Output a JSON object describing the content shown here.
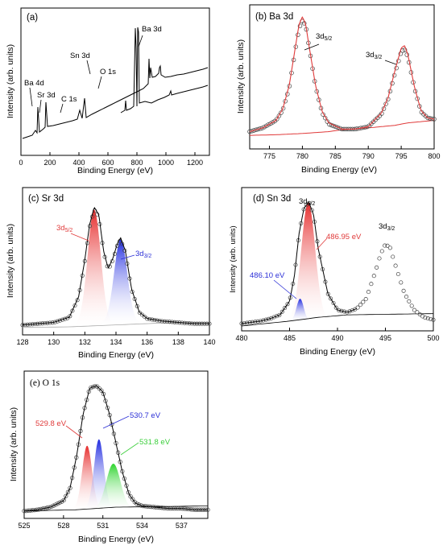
{
  "chart_data": [
    {
      "id": "a",
      "type": "line",
      "title": "(a)",
      "xlabel": "Binding Energy (eV)",
      "ylabel": "Intensity (arb. units)",
      "xlim": [
        0,
        1300
      ],
      "xticks": [
        0,
        200,
        400,
        600,
        800,
        1000,
        1200
      ],
      "series": [
        {
          "x": [
            0,
            20,
            40,
            60,
            80,
            90,
            93,
            96,
            110,
            130,
            135,
            140,
            160,
            180,
            200,
            220,
            240,
            260,
            270,
            285,
            290,
            300,
            320,
            340,
            360,
            380,
            400,
            420,
            440,
            460,
            480,
            488,
            492,
            500,
            520,
            530,
            533,
            536,
            550,
            570,
            590,
            600,
            620,
            640,
            660,
            680,
            700,
            720,
            730,
            735,
            740,
            760,
            775,
            780,
            783,
            789,
            795,
            800,
            820,
            840,
            860,
            880,
            900,
            950,
            1000,
            1050,
            1060,
            1070,
            1100,
            1150,
            1200,
            1250,
            1290
          ],
          "y": [
            0.03,
            0.04,
            0.05,
            0.07,
            0.08,
            0.09,
            0.28,
            0.1,
            0.11,
            0.12,
            0.33,
            0.13,
            0.13,
            0.14,
            0.14,
            0.15,
            0.15,
            0.16,
            0.22,
            0.16,
            0.3,
            0.17,
            0.18,
            0.19,
            0.2,
            0.21,
            0.22,
            0.23,
            0.24,
            0.25,
            0.3,
            0.62,
            0.55,
            0.34,
            0.36,
            0.42,
            0.47,
            0.4,
            0.38,
            0.4,
            0.42,
            0.43,
            0.44,
            0.45,
            0.46,
            0.47,
            0.48,
            0.49,
            0.62,
            0.55,
            0.52,
            0.55,
            0.62,
            1.0,
            0.62,
            0.98,
            0.7,
            0.66,
            0.6,
            0.58,
            0.6,
            0.63,
            0.64,
            0.65,
            0.66,
            0.68,
            0.76,
            0.7,
            0.71,
            0.73,
            0.75,
            0.76,
            0.77
          ]
        }
      ],
      "annotations": [
        {
          "text": "Ba 3d",
          "x": 780,
          "y": 1.0
        },
        {
          "text": "Sn 3d",
          "x": 488,
          "y": 0.62
        },
        {
          "text": "O 1s",
          "x": 531,
          "y": 0.47
        },
        {
          "text": "C 1s",
          "x": 285,
          "y": 0.3
        },
        {
          "text": "Sr 3d",
          "x": 134,
          "y": 0.33
        },
        {
          "text": "Ba 4d",
          "x": 92,
          "y": 0.28
        }
      ]
    },
    {
      "id": "b",
      "type": "scatter",
      "title": "(b) Ba 3d",
      "xlabel": "Binding Energy (eV)",
      "ylabel": "Intensity (arb. units)",
      "xlim": [
        772,
        800
      ],
      "xticks": [
        775,
        780,
        785,
        790,
        795,
        800
      ],
      "peaks": [
        {
          "label": "3d5/2",
          "center": 780.2
        },
        {
          "label": "3d3/2",
          "center": 795.6
        }
      ],
      "series": [
        {
          "name": "data",
          "marker": "open-circle",
          "x": [
            772,
            774,
            776,
            777,
            778,
            779,
            779.5,
            780,
            780.5,
            781,
            782,
            783,
            784,
            786,
            788,
            790,
            792,
            793,
            794,
            795,
            795.5,
            796,
            797,
            798,
            799,
            800
          ],
          "y": [
            0.1,
            0.13,
            0.19,
            0.27,
            0.45,
            0.78,
            0.93,
            0.99,
            0.95,
            0.78,
            0.46,
            0.25,
            0.16,
            0.12,
            0.12,
            0.14,
            0.24,
            0.36,
            0.56,
            0.74,
            0.76,
            0.7,
            0.45,
            0.26,
            0.21,
            0.2
          ]
        },
        {
          "name": "fit",
          "color": "#e03a3a",
          "x": [
            772,
            774,
            776,
            777,
            778,
            779,
            779.5,
            780,
            780.5,
            781,
            782,
            783,
            784,
            786,
            788,
            790,
            792,
            793,
            794,
            795,
            795.5,
            796,
            797,
            798,
            799,
            800
          ],
          "y": [
            0.1,
            0.13,
            0.19,
            0.28,
            0.47,
            0.8,
            0.96,
            1.02,
            0.96,
            0.79,
            0.47,
            0.26,
            0.17,
            0.12,
            0.12,
            0.14,
            0.25,
            0.37,
            0.58,
            0.77,
            0.79,
            0.72,
            0.46,
            0.27,
            0.21,
            0.2
          ]
        },
        {
          "name": "background",
          "color": "#e03a3a",
          "x": [
            772,
            776,
            780,
            784,
            786,
            790,
            794,
            796,
            800
          ],
          "y": [
            0.07,
            0.075,
            0.085,
            0.1,
            0.115,
            0.13,
            0.15,
            0.17,
            0.19
          ]
        }
      ]
    },
    {
      "id": "c",
      "type": "area",
      "title": "(c) Sr 3d",
      "xlabel": "Binding Energy (eV)",
      "ylabel": "Intensity (arb. units)",
      "xlim": [
        128,
        140
      ],
      "xticks": [
        128,
        130,
        132,
        134,
        136,
        138,
        140
      ],
      "peaks": [
        {
          "label": "3d5/2",
          "center": 132.6,
          "color": "#e03a3a"
        },
        {
          "label": "3d3/2",
          "center": 134.3,
          "color": "#2b2fd6"
        }
      ],
      "series": [
        {
          "name": "envelope",
          "x": [
            128,
            129,
            130,
            131,
            131.6,
            132,
            132.3,
            132.6,
            132.9,
            133.2,
            133.5,
            133.8,
            134.1,
            134.3,
            134.6,
            135,
            135.5,
            136,
            137,
            138,
            139,
            140
          ],
          "y": [
            0.04,
            0.05,
            0.06,
            0.1,
            0.26,
            0.55,
            0.82,
            0.96,
            0.9,
            0.62,
            0.48,
            0.56,
            0.68,
            0.72,
            0.62,
            0.32,
            0.14,
            0.09,
            0.07,
            0.06,
            0.05,
            0.05
          ]
        },
        {
          "name": "background",
          "x": [
            128,
            131,
            134,
            137,
            140
          ],
          "y": [
            0.02,
            0.025,
            0.04,
            0.055,
            0.06
          ]
        }
      ]
    },
    {
      "id": "d",
      "type": "area",
      "title": "(d) Sn 3d",
      "xlabel": "Binding Energy (eV)",
      "ylabel": "Intensity (arb. units)",
      "xlim": [
        480,
        500
      ],
      "xticks": [
        480,
        485,
        490,
        495,
        500
      ],
      "peaks": [
        {
          "label": "3d5/2",
          "center": 486.95,
          "text": "486.95 eV",
          "color": "#e03a3a"
        },
        {
          "label": "486.10 eV",
          "center": 486.1,
          "color": "#2b2fd6"
        },
        {
          "label": "3d3/2",
          "center": 495.3
        }
      ],
      "series": [
        {
          "name": "data",
          "x": [
            480,
            481,
            482,
            483,
            484,
            485,
            485.5,
            486,
            486.5,
            487,
            487.5,
            488,
            489,
            490,
            491,
            492,
            493,
            494,
            494.5,
            495,
            495.5,
            496,
            497,
            498,
            499,
            500
          ],
          "y": [
            0.02,
            0.03,
            0.04,
            0.06,
            0.09,
            0.2,
            0.4,
            0.75,
            0.95,
            1.0,
            0.9,
            0.62,
            0.26,
            0.13,
            0.11,
            0.14,
            0.22,
            0.45,
            0.58,
            0.66,
            0.63,
            0.5,
            0.26,
            0.13,
            0.07,
            0.05
          ]
        }
      ]
    },
    {
      "id": "e",
      "type": "area",
      "title": "(e) O 1s",
      "xlabel": "Binding Energy (eV)",
      "ylabel": "Intensity (arb. units)",
      "xlim": [
        525,
        539
      ],
      "xticks": [
        525,
        528,
        531,
        534,
        537
      ],
      "peaks": [
        {
          "label": "529.8 eV",
          "center": 529.8,
          "color": "#e03a3a"
        },
        {
          "label": "530.7 eV",
          "center": 530.7,
          "color": "#2b2fd6"
        },
        {
          "label": "531.8 eV",
          "center": 531.8,
          "color": "#3ccf3c"
        }
      ],
      "series": [
        {
          "name": "envelope",
          "x": [
            525,
            526,
            527,
            528,
            528.5,
            529,
            529.5,
            530,
            530.5,
            531,
            531.5,
            532,
            532.5,
            533,
            533.5,
            534,
            535,
            536,
            537,
            538,
            539
          ],
          "y": [
            0.02,
            0.03,
            0.05,
            0.1,
            0.2,
            0.45,
            0.78,
            0.98,
            1.0,
            0.95,
            0.78,
            0.55,
            0.32,
            0.15,
            0.08,
            0.06,
            0.05,
            0.04,
            0.04,
            0.03,
            0.03
          ]
        }
      ]
    }
  ]
}
